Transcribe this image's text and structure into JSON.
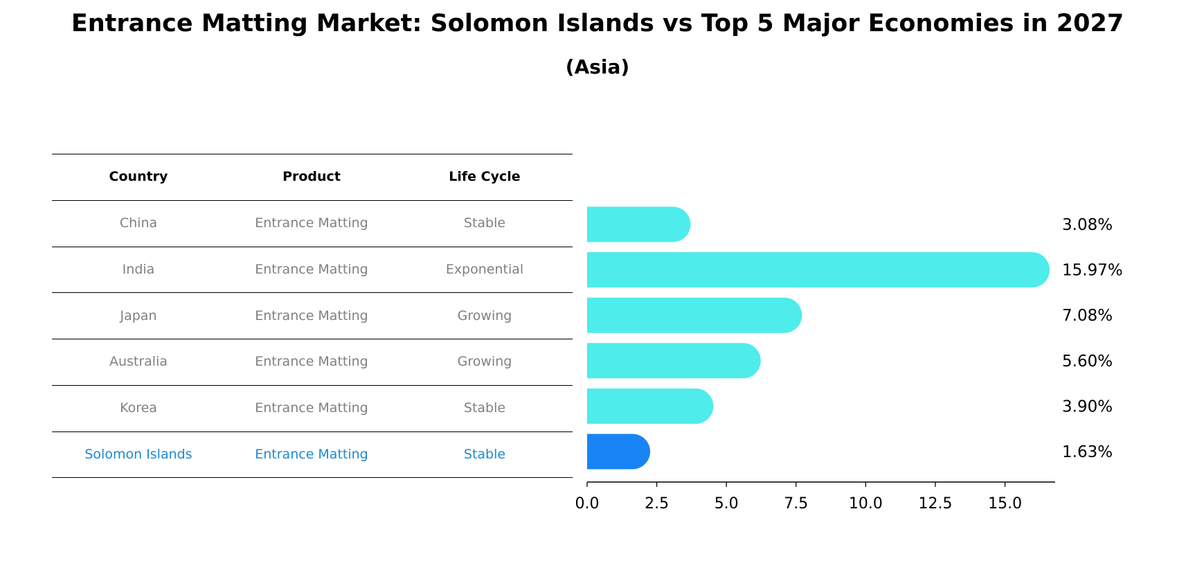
{
  "title": "Entrance Matting Market: Solomon Islands vs Top 5 Major Economies in 2027",
  "subtitle": "(Asia)",
  "table": {
    "headers": [
      "Country",
      "Product",
      "Life Cycle"
    ],
    "rows": [
      {
        "country": "China",
        "product": "Entrance Matting",
        "life_cycle": "Stable",
        "highlight": false
      },
      {
        "country": "India",
        "product": "Entrance Matting",
        "life_cycle": "Exponential",
        "highlight": false
      },
      {
        "country": "Japan",
        "product": "Entrance Matting",
        "life_cycle": "Growing",
        "highlight": false
      },
      {
        "country": "Australia",
        "product": "Entrance Matting",
        "life_cycle": "Growing",
        "highlight": false
      },
      {
        "country": "Korea",
        "product": "Entrance Matting",
        "life_cycle": "Stable",
        "highlight": false
      },
      {
        "country": "Solomon Islands",
        "product": "Entrance Matting",
        "life_cycle": "Stable",
        "highlight": true
      }
    ]
  },
  "chart_data": {
    "type": "bar",
    "orientation": "horizontal",
    "categories": [
      "China",
      "India",
      "Japan",
      "Australia",
      "Korea",
      "Solomon Islands"
    ],
    "values": [
      3.08,
      15.97,
      7.08,
      5.6,
      3.9,
      1.63
    ],
    "value_labels": [
      "3.08%",
      "15.97%",
      "7.08%",
      "5.60%",
      "3.90%",
      "1.63%"
    ],
    "xlim": [
      0,
      16.8
    ],
    "xticks": [
      0,
      2.5,
      5,
      7.5,
      10,
      12.5,
      15
    ],
    "xtick_labels": [
      "0.0",
      "2.5",
      "5.0",
      "7.5",
      "10.0",
      "12.5",
      "15.0"
    ],
    "xlabel": "",
    "ylabel": "",
    "grid": false,
    "colors": {
      "default": "#4eeceb",
      "highlight": "#1984f5"
    }
  }
}
